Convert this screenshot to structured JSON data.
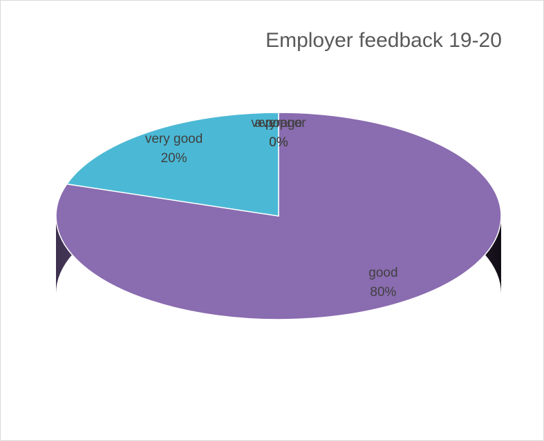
{
  "chart_data": {
    "type": "pie",
    "title": "Employer feedback 19-20",
    "categories": [
      "good",
      "very good",
      "average",
      "poor",
      "very poor"
    ],
    "values": [
      80,
      20,
      0,
      0,
      0
    ],
    "value_labels": [
      "80%",
      "20%",
      "0%",
      "0%",
      "0%"
    ],
    "colors": [
      "#8a6cb0",
      "#4bb9d5",
      "#f79646",
      "#9bbb59",
      "#c0504d"
    ]
  }
}
